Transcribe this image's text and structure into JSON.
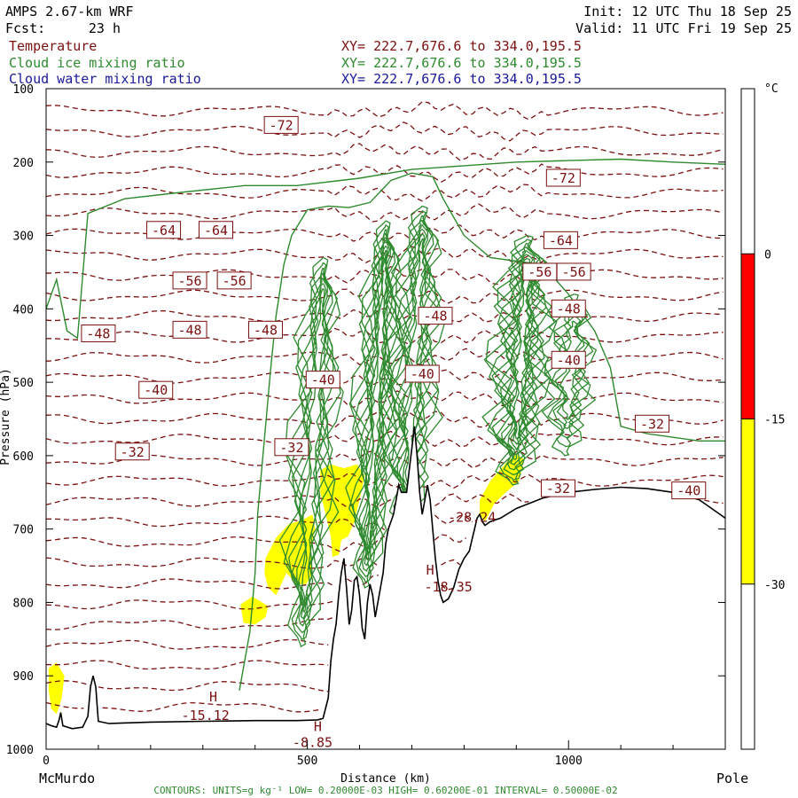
{
  "header": {
    "model": "AMPS 2.67-km WRF",
    "init": "Init: 12 UTC Thu 18 Sep 25",
    "forecast_label": "Fcst:",
    "forecast_value": "23 h",
    "valid": "Valid: 11 UTC Fri 19 Sep 25"
  },
  "fields": [
    {
      "name": "Temperature",
      "xy": "XY= 222.7,676.6 to 334.0,195.5",
      "color": "#7a1010"
    },
    {
      "name": "Cloud ice mixing ratio",
      "xy": "XY= 222.7,676.6 to 334.0,195.5",
      "color": "#2f8a2f"
    },
    {
      "name": "Cloud water mixing ratio",
      "xy": "XY= 222.7,676.6 to 334.0,195.5",
      "color": "#1a1a9a"
    }
  ],
  "footer": {
    "start_label": "McMurdo",
    "end_label": "Pole",
    "contours": "CONTOURS: UNITS=g kg⁻¹ LOW= 0.20000E-03 HIGH= 0.60200E-01 INTERVAL= 0.50000E-02"
  },
  "colorbar": {
    "unit": "°C",
    "ticks": [
      "0",
      "-15",
      "-30"
    ],
    "bands": [
      {
        "from": -45,
        "to": -30,
        "color": "#ffffff"
      },
      {
        "from": -30,
        "to": -15,
        "color": "#ffff00"
      },
      {
        "from": -15,
        "to": 0,
        "color": "#ff0000"
      },
      {
        "from": 0,
        "to": 15,
        "color": "#ffffff"
      }
    ],
    "range": [
      -45,
      15
    ]
  },
  "chart_data": {
    "type": "cross-section",
    "xlabel": "Distance (km)",
    "ylabel": "Pressure (hPa)",
    "xlim": [
      0,
      1300
    ],
    "ylim": [
      1000,
      100
    ],
    "xticks": [
      0,
      500,
      1000
    ],
    "yticks": [
      100,
      200,
      300,
      400,
      500,
      600,
      700,
      800,
      900,
      1000
    ],
    "terrain": [
      [
        0,
        965
      ],
      [
        10,
        968
      ],
      [
        20,
        970
      ],
      [
        25,
        960
      ],
      [
        28,
        950
      ],
      [
        32,
        968
      ],
      [
        50,
        972
      ],
      [
        70,
        970
      ],
      [
        80,
        955
      ],
      [
        85,
        915
      ],
      [
        90,
        900
      ],
      [
        95,
        915
      ],
      [
        100,
        962
      ],
      [
        120,
        965
      ],
      [
        200,
        963
      ],
      [
        300,
        962
      ],
      [
        400,
        961
      ],
      [
        480,
        961
      ],
      [
        520,
        960
      ],
      [
        530,
        958
      ],
      [
        540,
        930
      ],
      [
        545,
        880
      ],
      [
        550,
        850
      ],
      [
        555,
        830
      ],
      [
        560,
        790
      ],
      [
        565,
        760
      ],
      [
        570,
        740
      ],
      [
        575,
        780
      ],
      [
        580,
        830
      ],
      [
        585,
        810
      ],
      [
        590,
        770
      ],
      [
        595,
        765
      ],
      [
        600,
        790
      ],
      [
        605,
        835
      ],
      [
        610,
        850
      ],
      [
        615,
        800
      ],
      [
        620,
        775
      ],
      [
        625,
        790
      ],
      [
        630,
        820
      ],
      [
        640,
        780
      ],
      [
        645,
        760
      ],
      [
        650,
        720
      ],
      [
        655,
        700
      ],
      [
        660,
        690
      ],
      [
        665,
        680
      ],
      [
        670,
        660
      ],
      [
        675,
        640
      ],
      [
        680,
        650
      ],
      [
        690,
        650
      ],
      [
        695,
        620
      ],
      [
        700,
        590
      ],
      [
        705,
        560
      ],
      [
        710,
        600
      ],
      [
        715,
        650
      ],
      [
        720,
        680
      ],
      [
        725,
        660
      ],
      [
        730,
        640
      ],
      [
        735,
        660
      ],
      [
        740,
        700
      ],
      [
        745,
        740
      ],
      [
        750,
        770
      ],
      [
        755,
        790
      ],
      [
        760,
        800
      ],
      [
        770,
        795
      ],
      [
        780,
        780
      ],
      [
        790,
        755
      ],
      [
        800,
        740
      ],
      [
        810,
        730
      ],
      [
        815,
        715
      ],
      [
        820,
        700
      ],
      [
        825,
        685
      ],
      [
        830,
        680
      ],
      [
        835,
        690
      ],
      [
        840,
        695
      ],
      [
        850,
        690
      ],
      [
        870,
        685
      ],
      [
        900,
        672
      ],
      [
        950,
        658
      ],
      [
        1000,
        650
      ],
      [
        1050,
        646
      ],
      [
        1100,
        643
      ],
      [
        1150,
        645
      ],
      [
        1200,
        650
      ],
      [
        1250,
        660
      ],
      [
        1280,
        675
      ],
      [
        1300,
        685
      ]
    ],
    "temperature_labels": [
      {
        "x": 450,
        "p": 150,
        "text": "-72"
      },
      {
        "x": 990,
        "p": 222,
        "text": "-72"
      },
      {
        "x": 225,
        "p": 293,
        "text": "-64"
      },
      {
        "x": 325,
        "p": 293,
        "text": "-64"
      },
      {
        "x": 985,
        "p": 307,
        "text": "-64"
      },
      {
        "x": 275,
        "p": 362,
        "text": "-56"
      },
      {
        "x": 360,
        "p": 362,
        "text": "-56"
      },
      {
        "x": 945,
        "p": 350,
        "text": "-56"
      },
      {
        "x": 1010,
        "p": 350,
        "text": "-56"
      },
      {
        "x": 100,
        "p": 434,
        "text": "-48"
      },
      {
        "x": 275,
        "p": 429,
        "text": "-48"
      },
      {
        "x": 420,
        "p": 429,
        "text": "-48"
      },
      {
        "x": 745,
        "p": 410,
        "text": "-48"
      },
      {
        "x": 1000,
        "p": 400,
        "text": "-48"
      },
      {
        "x": 210,
        "p": 511,
        "text": "-40"
      },
      {
        "x": 530,
        "p": 497,
        "text": "-40"
      },
      {
        "x": 720,
        "p": 489,
        "text": "-40"
      },
      {
        "x": 1000,
        "p": 470,
        "text": "-40"
      },
      {
        "x": 165,
        "p": 595,
        "text": "-32"
      },
      {
        "x": 470,
        "p": 589,
        "text": "-32"
      },
      {
        "x": 1160,
        "p": 557,
        "text": "-32"
      },
      {
        "x": 980,
        "p": 645,
        "text": "-32"
      },
      {
        "x": 1230,
        "p": 648,
        "text": "-40"
      }
    ],
    "annotations": [
      {
        "x": 320,
        "p": 935,
        "text": "H"
      },
      {
        "x": 305,
        "p": 960,
        "text": "-15.12"
      },
      {
        "x": 520,
        "p": 975,
        "text": "H"
      },
      {
        "x": 510,
        "p": 997,
        "text": "-8.85"
      },
      {
        "x": 735,
        "p": 762,
        "text": "H"
      },
      {
        "x": 770,
        "p": 785,
        "text": "-18.35"
      },
      {
        "x": 815,
        "p": 690,
        "text": "-28.24"
      }
    ],
    "shaded_regions": [
      {
        "band": "-30 to -15",
        "color": "#ffff00",
        "points": [
          [
            5,
            890
          ],
          [
            20,
            882
          ],
          [
            35,
            900
          ],
          [
            30,
            930
          ],
          [
            20,
            952
          ],
          [
            10,
            945
          ],
          [
            5,
            920
          ]
        ]
      },
      {
        "band": "-30 to -15",
        "color": "#ffff00",
        "points": [
          [
            372,
            803
          ],
          [
            395,
            792
          ],
          [
            425,
            805
          ],
          [
            420,
            820
          ],
          [
            400,
            830
          ],
          [
            378,
            828
          ]
        ]
      },
      {
        "band": "-30 to -15",
        "color": "#ffff00",
        "points": [
          [
            420,
            740
          ],
          [
            440,
            712
          ],
          [
            465,
            693
          ],
          [
            490,
            688
          ],
          [
            510,
            680
          ],
          [
            515,
            700
          ],
          [
            505,
            730
          ],
          [
            510,
            760
          ],
          [
            498,
            775
          ],
          [
            480,
            775
          ],
          [
            460,
            760
          ],
          [
            440,
            790
          ],
          [
            425,
            780
          ],
          [
            418,
            760
          ]
        ]
      },
      {
        "band": "-30 to -15",
        "color": "#ffff00",
        "points": [
          [
            525,
            620
          ],
          [
            545,
            612
          ],
          [
            570,
            617
          ],
          [
            595,
            612
          ],
          [
            610,
            627
          ],
          [
            600,
            660
          ],
          [
            590,
            690
          ],
          [
            578,
            710
          ],
          [
            565,
            715
          ],
          [
            560,
            735
          ],
          [
            548,
            738
          ],
          [
            545,
            710
          ],
          [
            535,
            680
          ],
          [
            525,
            650
          ]
        ]
      },
      {
        "band": "-30 to -15",
        "color": "#ffff00",
        "points": [
          [
            830,
            660
          ],
          [
            850,
            635
          ],
          [
            880,
            610
          ],
          [
            900,
            598
          ],
          [
            915,
            605
          ],
          [
            905,
            635
          ],
          [
            880,
            650
          ],
          [
            858,
            665
          ],
          [
            840,
            690
          ],
          [
            830,
            680
          ]
        ]
      }
    ]
  }
}
